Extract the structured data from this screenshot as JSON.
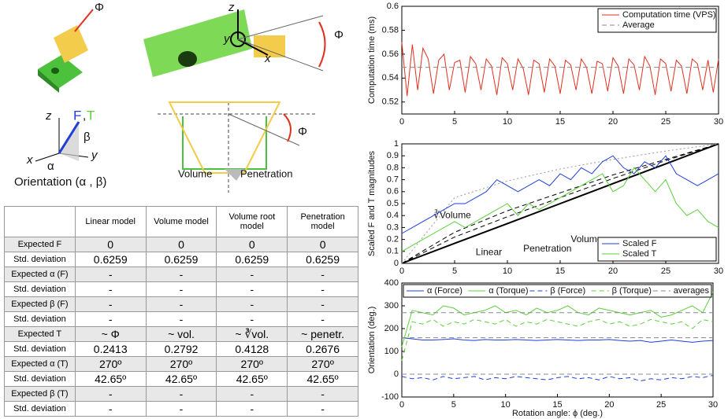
{
  "illustration": {
    "phi_a": "Φ",
    "phi_b": "Φ",
    "phi_c": "Φ",
    "z_a": "z",
    "y_a": "y",
    "x_a": "x",
    "z_b": "z",
    "x_b": "x",
    "y_b": "y",
    "f_label": "F",
    "comma": ",",
    "t_label": "T",
    "beta": "β",
    "alpha": "α",
    "orientation": "Orientation (α , β)",
    "volume": "Volume",
    "penetration": "Penetration"
  },
  "table": {
    "header": [
      "",
      "Linear model",
      "Volume model",
      "Volume root model",
      "Penetration model"
    ],
    "rows": [
      [
        "Expected F",
        "0",
        "0",
        "0",
        "0"
      ],
      [
        "Std. deviation",
        "0.6259",
        "0.6259",
        "0.6259",
        "0.6259"
      ],
      [
        "Expected α (F)",
        "-",
        "-",
        "-",
        "-"
      ],
      [
        "Std. deviation",
        "-",
        "-",
        "-",
        "-"
      ],
      [
        "Expected β (F)",
        "-",
        "-",
        "-",
        "-"
      ],
      [
        "Std. deviation",
        "-",
        "-",
        "-",
        "-"
      ],
      [
        "Expected T",
        "~ Φ",
        "~ vol.",
        "~ ∛vol.",
        "~ penetr."
      ],
      [
        "Std. deviation",
        "0.2413",
        "0.2792",
        "0.4128",
        "0.2676"
      ],
      [
        "Expected α (T)",
        "270º",
        "270º",
        "270º",
        "270º"
      ],
      [
        "Std. deviation",
        "42.65º",
        "42.65º",
        "42.65º",
        "42.65º"
      ],
      [
        "Expected β (T)",
        "-",
        "-",
        "-",
        "-"
      ],
      [
        "Std. deviation",
        "-",
        "-",
        "-",
        "-"
      ]
    ]
  },
  "chart_data": [
    {
      "type": "line",
      "ylabel": "Computation time (ms)",
      "legend": "upper right",
      "x": [
        0,
        0.5,
        1,
        1.5,
        2,
        2.5,
        3,
        3.5,
        4,
        4.5,
        5,
        5.5,
        6,
        6.5,
        7,
        7.5,
        8,
        8.5,
        9,
        9.5,
        10,
        10.5,
        11,
        11.5,
        12,
        12.5,
        13,
        13.5,
        14,
        14.5,
        15,
        15.5,
        16,
        16.5,
        17,
        17.5,
        18,
        18.5,
        19,
        19.5,
        20,
        20.5,
        21,
        21.5,
        22,
        22.5,
        23,
        23.5,
        24,
        24.5,
        25,
        25.5,
        26,
        26.5,
        27,
        27.5,
        28,
        28.5,
        29,
        29.5,
        30
      ],
      "xlim": [
        0,
        30
      ],
      "xticks": [
        0,
        5,
        10,
        15,
        20,
        25,
        30
      ],
      "ylim": [
        0.51,
        0.6
      ],
      "yticks": [
        0.52,
        0.54,
        0.56,
        0.58,
        0.6
      ],
      "series": [
        {
          "name": "Computation time (VPS)",
          "color": "#e03020",
          "dash": "solid",
          "values": [
            0.57,
            0.525,
            0.568,
            0.53,
            0.565,
            0.556,
            0.527,
            0.555,
            0.56,
            0.53,
            0.553,
            0.555,
            0.528,
            0.558,
            0.552,
            0.53,
            0.556,
            0.55,
            0.526,
            0.557,
            0.552,
            0.53,
            0.556,
            0.548,
            0.526,
            0.555,
            0.552,
            0.528,
            0.556,
            0.55,
            0.527,
            0.555,
            0.551,
            0.53,
            0.556,
            0.549,
            0.527,
            0.554,
            0.552,
            0.529,
            0.557,
            0.55,
            0.527,
            0.556,
            0.551,
            0.53,
            0.558,
            0.55,
            0.526,
            0.556,
            0.552,
            0.529,
            0.555,
            0.55,
            0.527,
            0.556,
            0.552,
            0.53,
            0.555,
            0.528,
            0.556
          ]
        },
        {
          "name": "Average",
          "color": "#888888",
          "dash": "dashed",
          "x": [
            0,
            30
          ],
          "values": [
            0.549,
            0.549
          ]
        }
      ]
    },
    {
      "type": "line",
      "ylabel": "Scaled F and T magnitudes",
      "legend": "lower right",
      "x": [
        0,
        1,
        2,
        3,
        4,
        5,
        6,
        7,
        8,
        9,
        10,
        11,
        12,
        13,
        14,
        15,
        16,
        17,
        18,
        19,
        20,
        21,
        22,
        23,
        24,
        25,
        26,
        27,
        28,
        29,
        30
      ],
      "xlim": [
        0,
        30
      ],
      "xticks": [
        0,
        5,
        10,
        15,
        20,
        25,
        30
      ],
      "ylim": [
        0,
        1
      ],
      "yticks": [
        0,
        0.1,
        0.2,
        0.3,
        0.4,
        0.5,
        0.6,
        0.7,
        0.8,
        0.9,
        1
      ],
      "series": [
        {
          "name": "Scaled F",
          "color": "#1f3fd8",
          "dash": "solid",
          "values": [
            0.25,
            0.3,
            0.35,
            0.4,
            0.45,
            0.5,
            0.5,
            0.55,
            0.6,
            0.7,
            0.65,
            0.6,
            0.65,
            0.7,
            0.65,
            0.75,
            0.7,
            0.8,
            0.75,
            0.85,
            0.9,
            0.8,
            0.75,
            0.85,
            0.8,
            0.9,
            0.75,
            0.7,
            0.65,
            0.7,
            0.75
          ]
        },
        {
          "name": "Scaled T",
          "color": "#5cd03a",
          "dash": "solid",
          "values": [
            0.1,
            0.15,
            0.2,
            0.25,
            0.3,
            0.35,
            0.3,
            0.35,
            0.4,
            0.45,
            0.5,
            0.4,
            0.5,
            0.45,
            0.5,
            0.55,
            0.6,
            0.65,
            0.7,
            0.75,
            0.6,
            0.65,
            0.8,
            0.7,
            0.6,
            0.7,
            0.5,
            0.4,
            0.45,
            0.35,
            0.3
          ]
        }
      ],
      "curves": [
        {
          "name": "Linear",
          "color": "#000000",
          "dash": "solid",
          "x": [
            0,
            5,
            10,
            15,
            20,
            25,
            30
          ],
          "values": [
            0,
            0.167,
            0.333,
            0.5,
            0.667,
            0.833,
            1
          ]
        },
        {
          "name": "Penetration",
          "color": "#000000",
          "dash": "dashed",
          "x": [
            0,
            5,
            10,
            15,
            20,
            25,
            30
          ],
          "values": [
            0,
            0.22,
            0.39,
            0.55,
            0.71,
            0.86,
            1
          ]
        },
        {
          "name": "Volume",
          "color": "#000000",
          "dash": "dashed",
          "x": [
            0,
            5,
            10,
            15,
            20,
            25,
            30
          ],
          "values": [
            0,
            0.26,
            0.44,
            0.59,
            0.74,
            0.87,
            1
          ]
        },
        {
          "name": "∛Volume",
          "color": "#999999",
          "dash": "dotted",
          "x": [
            0,
            5,
            10,
            15,
            20,
            25,
            30
          ],
          "values": [
            0,
            0.55,
            0.69,
            0.79,
            0.87,
            0.94,
            1
          ]
        }
      ]
    },
    {
      "type": "line",
      "ylabel": "Orientation (deg.)",
      "xlabel": "Rotation angle: ϕ (deg.)",
      "legend": "upper center",
      "x": [
        0,
        1,
        2,
        3,
        4,
        5,
        6,
        7,
        8,
        9,
        10,
        11,
        12,
        13,
        14,
        15,
        16,
        17,
        18,
        19,
        20,
        21,
        22,
        23,
        24,
        25,
        26,
        27,
        28,
        29,
        30
      ],
      "xlim": [
        0,
        30
      ],
      "xticks": [
        0,
        5,
        10,
        15,
        20,
        25,
        30
      ],
      "ylim": [
        -100,
        400
      ],
      "yticks": [
        -100,
        0,
        100,
        200,
        300,
        400
      ],
      "series": [
        {
          "name": "α (Force)",
          "color": "#1f3fd8",
          "dash": "solid",
          "values": [
            160,
            155,
            150,
            150,
            152,
            155,
            150,
            148,
            152,
            150,
            150,
            152,
            150,
            148,
            150,
            152,
            150,
            148,
            150,
            150,
            152,
            148,
            145,
            148,
            140,
            145,
            150,
            145,
            140,
            145,
            148
          ]
        },
        {
          "name": "α (Torque)",
          "color": "#5cd03a",
          "dash": "solid",
          "values": [
            120,
            280,
            270,
            260,
            300,
            290,
            260,
            270,
            280,
            300,
            270,
            280,
            260,
            290,
            270,
            280,
            300,
            270,
            260,
            290,
            280,
            270,
            260,
            270,
            280,
            250,
            260,
            280,
            300,
            270,
            360
          ]
        },
        {
          "name": "β (Force)",
          "color": "#1f3fd8",
          "dash": "dashed",
          "values": [
            -10,
            -20,
            -15,
            -25,
            -10,
            -20,
            -15,
            -10,
            -25,
            -15,
            -20,
            -10,
            -15,
            -20,
            -25,
            -15,
            -10,
            -20,
            -15,
            -25,
            -10,
            -20,
            -15,
            -30,
            -20,
            -25,
            -15,
            -20,
            -10,
            -15,
            -5
          ]
        },
        {
          "name": "β (Torque)",
          "color": "#5cd03a",
          "dash": "dashed",
          "values": [
            60,
            230,
            220,
            240,
            210,
            230,
            220,
            240,
            230,
            220,
            240,
            210,
            230,
            220,
            240,
            230,
            220,
            210,
            230,
            240,
            220,
            230,
            210,
            220,
            240,
            230,
            220,
            230,
            200,
            240,
            230
          ]
        },
        {
          "name": "averages",
          "color": "#888888",
          "dash": "dashed",
          "levels": [
            270,
            160,
            0
          ]
        }
      ]
    }
  ]
}
